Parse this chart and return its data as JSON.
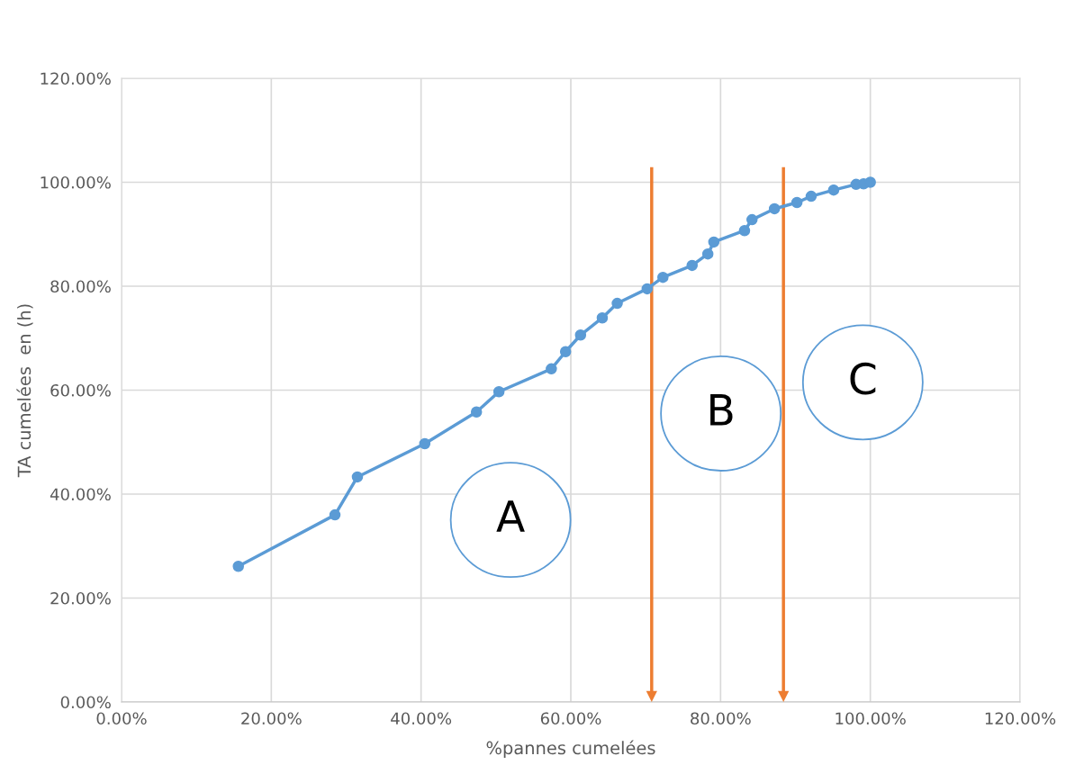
{
  "chart_data": {
    "type": "line",
    "xlabel": "%pannes cumelées",
    "ylabel": "TA cumelées  en (h)",
    "x": [
      15.6,
      28.5,
      31.5,
      40.5,
      47.4,
      50.4,
      57.4,
      59.3,
      61.3,
      64.2,
      66.2,
      70.2,
      72.3,
      76.2,
      78.3,
      79.1,
      83.2,
      84.2,
      87.2,
      90.2,
      92.1,
      95.1,
      98.1,
      99.1,
      100
    ],
    "series": [
      {
        "color": "#5b9bd5",
        "values": [
          26.1,
          36.0,
          43.3,
          49.7,
          55.8,
          59.7,
          64.1,
          67.4,
          70.6,
          73.9,
          76.7,
          79.5,
          81.7,
          84.0,
          86.2,
          88.5,
          90.7,
          92.8,
          94.9,
          96.1,
          97.3,
          98.5,
          99.6,
          99.7,
          100
        ]
      }
    ],
    "xlim": [
      0,
      120
    ],
    "ylim": [
      0,
      120
    ],
    "xticks": [
      {
        "value": 0,
        "label": "0.00%"
      },
      {
        "value": 20,
        "label": "20.00%"
      },
      {
        "value": 40,
        "label": "40.00%"
      },
      {
        "value": 60,
        "label": "60.00%"
      },
      {
        "value": 80,
        "label": "80.00%"
      },
      {
        "value": 100,
        "label": "100.00%"
      },
      {
        "value": 120,
        "label": "120.00%"
      }
    ],
    "yticks": [
      {
        "value": 0,
        "label": "0.00%"
      },
      {
        "value": 20,
        "label": "20.00%"
      },
      {
        "value": 40,
        "label": "40.00%"
      },
      {
        "value": 60,
        "label": "60.00%"
      },
      {
        "value": 80,
        "label": "80.00%"
      },
      {
        "value": 100,
        "label": "100.00%"
      },
      {
        "value": 120,
        "label": "120.00%"
      }
    ],
    "ref_lines": [
      {
        "axis": "x",
        "value": 70.8,
        "color": "#ed7d31"
      },
      {
        "axis": "x",
        "value": 88.4,
        "color": "#ed7d31"
      }
    ],
    "annotations": [
      "A",
      "B",
      "C"
    ],
    "grid": true,
    "marker": "circle",
    "line_style": "solid"
  }
}
